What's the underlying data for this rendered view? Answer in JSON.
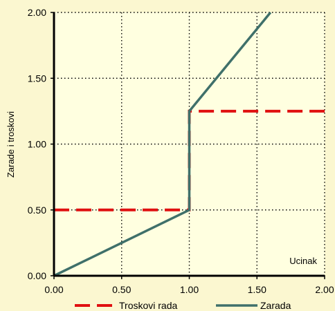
{
  "chart_data": {
    "type": "line",
    "xlabel": "Ucinak",
    "ylabel": "Zarade i troskovi",
    "xlim": [
      0,
      2
    ],
    "ylim": [
      0,
      2
    ],
    "x_ticks": [
      "0.00",
      "0.50",
      "1.00",
      "1.50",
      "2.00"
    ],
    "y_ticks": [
      "0.00",
      "0.50",
      "1.00",
      "1.50",
      "2.00"
    ],
    "grid": true,
    "legend_position": "bottom",
    "background": "#fbf7d0",
    "series": [
      {
        "name": "Troskovi rada",
        "color": "#e01010",
        "style": "dashed",
        "points": [
          [
            0,
            0.5
          ],
          [
            1.0,
            0.5
          ],
          [
            1.0,
            1.25
          ],
          [
            2.0,
            1.25
          ]
        ]
      },
      {
        "name": "Zarada",
        "color": "#3f706a",
        "style": "solid",
        "points": [
          [
            0,
            0
          ],
          [
            1.0,
            0.5
          ],
          [
            1.0,
            1.25
          ],
          [
            1.6,
            2.0
          ]
        ]
      }
    ]
  }
}
